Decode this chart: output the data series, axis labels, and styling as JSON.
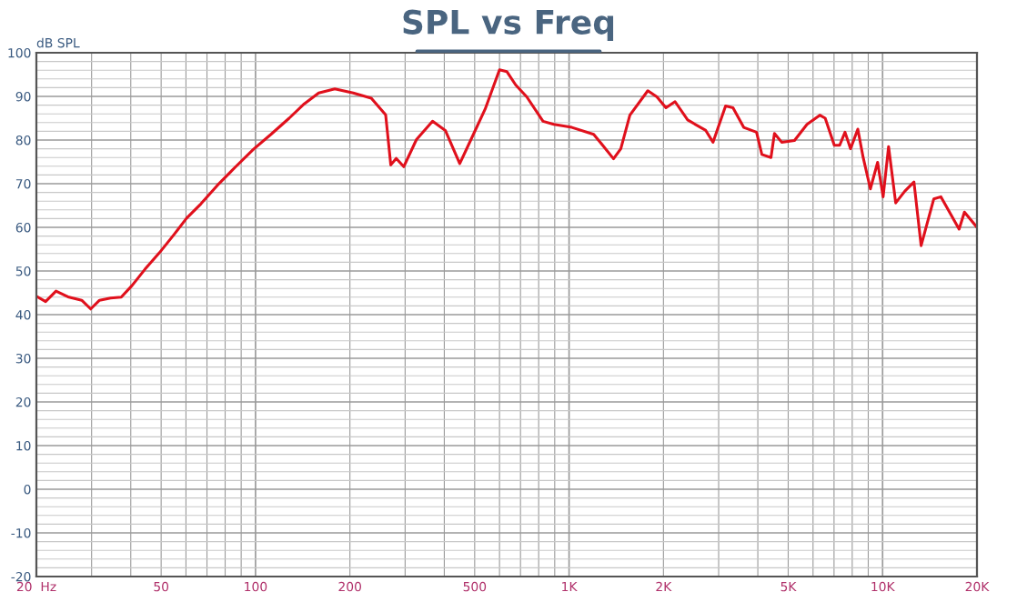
{
  "chart_data": {
    "type": "line",
    "title": "SPL vs Freq",
    "ylabel": "dB SPL",
    "log": "x",
    "grid": true,
    "marker": "none",
    "line_style": "solid",
    "xlim": [
      20,
      20000
    ],
    "xticks": [
      {
        "value": 20,
        "label": "20  Hz"
      },
      50,
      100,
      200,
      500,
      {
        "value": 1000,
        "label": "1K"
      },
      {
        "value": 2000,
        "label": "2K"
      },
      {
        "value": 5000,
        "label": "5K"
      },
      {
        "value": 10000,
        "label": "10K"
      },
      {
        "value": 20000,
        "label": "20K"
      }
    ],
    "ylim": [
      -20,
      100
    ],
    "yticks": [
      -20,
      -10,
      0,
      10,
      20,
      30,
      40,
      50,
      60,
      70,
      80,
      90,
      100
    ],
    "series": [
      {
        "color": "#e0101c",
        "x": [
          20,
          21.4,
          23.1,
          25.4,
          27.9,
          29.8,
          31.8,
          34.5,
          37.3,
          40.4,
          44.4,
          49.4,
          54.9,
          60.3,
          67,
          75.5,
          86.2,
          98.5,
          112,
          128,
          143,
          159,
          179,
          205,
          234,
          260,
          270,
          281,
          297,
          326,
          367,
          403,
          448,
          485,
          540,
          600,
          633,
          676,
          733,
          826,
          894,
          1021,
          1198,
          1280,
          1386,
          1462,
          1563,
          1783,
          1906,
          2037,
          2178,
          2389,
          2729,
          2878,
          3157,
          3333,
          3606,
          3962,
          4121,
          4405,
          4520,
          4766,
          5235,
          5740,
          6306,
          6561,
          7014,
          7296,
          7588,
          7901,
          8337,
          8670,
          9142,
          9641,
          10040,
          10450,
          11010,
          11780,
          12590,
          13270,
          14560,
          15350,
          17540,
          18240,
          20000
        ],
        "values": [
          44.2,
          43,
          45.4,
          44,
          43.3,
          41.3,
          43.3,
          43.8,
          44,
          46.7,
          50.4,
          54.2,
          58.3,
          62.1,
          65.4,
          69.6,
          73.8,
          77.9,
          81.3,
          85,
          88.3,
          90.8,
          91.7,
          90.8,
          89.6,
          85.8,
          74.3,
          75.8,
          73.9,
          80.1,
          84.3,
          82.2,
          74.6,
          79.9,
          87.1,
          96.1,
          95.7,
          92.6,
          89.9,
          84.3,
          83.6,
          82.9,
          81.3,
          78.8,
          75.7,
          78,
          85.7,
          91.3,
          89.9,
          87.4,
          88.8,
          84.6,
          82.2,
          79.5,
          87.8,
          87.4,
          82.9,
          81.8,
          76.7,
          76,
          81.5,
          79.5,
          79.9,
          83.6,
          85.7,
          85,
          78.8,
          78.8,
          81.8,
          78,
          82.5,
          76,
          68.8,
          74.9,
          67,
          78.5,
          65.6,
          68.3,
          70.4,
          55.8,
          66.5,
          67,
          59.6,
          63.5,
          60
        ]
      }
    ]
  }
}
